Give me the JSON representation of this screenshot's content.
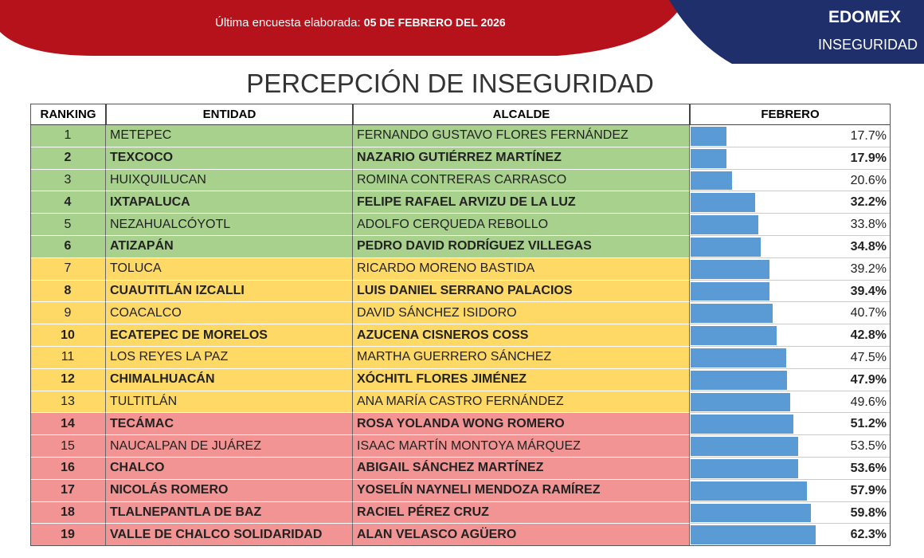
{
  "header": {
    "survey": "Última encuesta elaborada:",
    "date": "05 DE FEBRERO DEL 2026",
    "region": "EDOMEX",
    "topic": "INSEGURIDAD"
  },
  "title": "PERCEPCIÓN DE INSEGURIDAD",
  "table": {
    "columns": [
      "RANKING",
      "ENTIDAD",
      "ALCALDE",
      "FEBRERO"
    ],
    "rows": [
      {
        "rank": 1,
        "entity": "METEPEC",
        "mayor": "FERNANDO GUSTAVO FLORES FERNÁNDEZ",
        "value": 17.7,
        "label": "17.7%",
        "bold": false,
        "color": "#a9d18e"
      },
      {
        "rank": 2,
        "entity": "TEXCOCO",
        "mayor": "NAZARIO GUTIÉRREZ MARTÍNEZ",
        "value": 17.9,
        "label": "17.9%",
        "bold": true,
        "color": "#a9d18e"
      },
      {
        "rank": 3,
        "entity": "HUIXQUILUCAN",
        "mayor": "ROMINA CONTRERAS CARRASCO",
        "value": 20.6,
        "label": "20.6%",
        "bold": false,
        "color": "#a9d18e"
      },
      {
        "rank": 4,
        "entity": "IXTAPALUCA",
        "mayor": "FELIPE RAFAEL ARVIZU DE LA LUZ",
        "value": 32.2,
        "label": "32.2%",
        "bold": true,
        "color": "#a9d18e"
      },
      {
        "rank": 5,
        "entity": "NEZAHUALCÓYOTL",
        "mayor": "ADOLFO CERQUEDA REBOLLO",
        "value": 33.8,
        "label": "33.8%",
        "bold": false,
        "color": "#a9d18e"
      },
      {
        "rank": 6,
        "entity": "ATIZAPÁN",
        "mayor": "PEDRO DAVID RODRÍGUEZ VILLEGAS",
        "value": 34.8,
        "label": "34.8%",
        "bold": true,
        "color": "#a9d18e"
      },
      {
        "rank": 7,
        "entity": "TOLUCA",
        "mayor": "RICARDO MORENO BASTIDA",
        "value": 39.2,
        "label": "39.2%",
        "bold": false,
        "color": "#ffd966"
      },
      {
        "rank": 8,
        "entity": "CUAUTITLÁN IZCALLI",
        "mayor": "LUIS DANIEL SERRANO PALACIOS",
        "value": 39.4,
        "label": "39.4%",
        "bold": true,
        "color": "#ffd966"
      },
      {
        "rank": 9,
        "entity": "COACALCO",
        "mayor": "DAVID SÁNCHEZ ISIDORO",
        "value": 40.7,
        "label": "40.7%",
        "bold": false,
        "color": "#ffd966"
      },
      {
        "rank": 10,
        "entity": "ECATEPEC DE MORELOS",
        "mayor": "AZUCENA CISNEROS COSS",
        "value": 42.8,
        "label": "42.8%",
        "bold": true,
        "color": "#ffd966"
      },
      {
        "rank": 11,
        "entity": "LOS REYES LA PAZ",
        "mayor": "MARTHA GUERRERO SÁNCHEZ",
        "value": 47.5,
        "label": "47.5%",
        "bold": false,
        "color": "#ffd966"
      },
      {
        "rank": 12,
        "entity": "CHIMALHUACÁN",
        "mayor": "XÓCHITL FLORES JIMÉNEZ",
        "value": 47.9,
        "label": "47.9%",
        "bold": true,
        "color": "#ffd966"
      },
      {
        "rank": 13,
        "entity": "TULTITLÁN",
        "mayor": "ANA MARÍA CASTRO FERNÁNDEZ",
        "value": 49.6,
        "label": "49.6%",
        "bold": false,
        "color": "#ffd966"
      },
      {
        "rank": 14,
        "entity": "TECÁMAC",
        "mayor": "ROSA YOLANDA WONG ROMERO",
        "value": 51.2,
        "label": "51.2%",
        "bold": true,
        "color": "#f29494"
      },
      {
        "rank": 15,
        "entity": "NAUCALPAN DE JUÁREZ",
        "mayor": "ISAAC MARTÍN MONTOYA MÁRQUEZ",
        "value": 53.5,
        "label": "53.5%",
        "bold": false,
        "color": "#f29494"
      },
      {
        "rank": 16,
        "entity": "CHALCO",
        "mayor": "ABIGAIL SÁNCHEZ MARTÍNEZ",
        "value": 53.6,
        "label": "53.6%",
        "bold": true,
        "color": "#f29494"
      },
      {
        "rank": 17,
        "entity": "NICOLÁS ROMERO",
        "mayor": "YOSELÍN NAYNELI MENDOZA RAMÍREZ",
        "value": 57.9,
        "label": "57.9%",
        "bold": true,
        "color": "#f29494"
      },
      {
        "rank": 18,
        "entity": "TLALNEPANTLA DE BAZ",
        "mayor": "RACIEL PÉREZ CRUZ",
        "value": 59.8,
        "label": "59.8%",
        "bold": true,
        "color": "#f29494"
      },
      {
        "rank": 19,
        "entity": "VALLE DE CHALCO SOLIDARIDAD",
        "mayor": "ALAN VELASCO AGÜERO",
        "value": 62.3,
        "label": "62.3%",
        "bold": true,
        "color": "#f29494"
      }
    ]
  }
}
